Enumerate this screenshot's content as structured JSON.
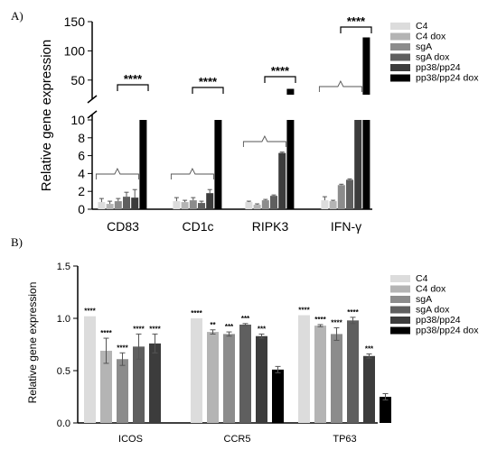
{
  "chart_data": [
    {
      "panel": "A)",
      "type": "bar",
      "ylabel": "Relative gene expression",
      "categories": [
        "CD83",
        "CD1c",
        "RIPK3",
        "IFN-γ"
      ],
      "y_axis_broken": true,
      "ylim_lower": [
        0,
        10
      ],
      "ylim_upper": [
        25,
        150
      ],
      "yticks_lower": [
        "0",
        "2",
        "4",
        "6",
        "8",
        "10"
      ],
      "yticks_upper": [
        "50",
        "100",
        "150"
      ],
      "legend_position": "right",
      "series": [
        {
          "name": "C4",
          "color": "#dcdcdc",
          "values": [
            0.8,
            0.9,
            0.8,
            1.0
          ],
          "errors": [
            0.4,
            0.4,
            0.1,
            0.4
          ]
        },
        {
          "name": "C4 dox",
          "color": "#b4b4b4",
          "values": [
            0.6,
            0.8,
            0.5,
            0.9
          ],
          "errors": [
            0.3,
            0.2,
            0.1,
            0.1
          ]
        },
        {
          "name": "sgA",
          "color": "#8c8c8c",
          "values": [
            0.9,
            1.0,
            1.0,
            2.7
          ],
          "errors": [
            0.3,
            0.3,
            0.1,
            0.1
          ]
        },
        {
          "name": "sgA dox",
          "color": "#5f5f5f",
          "values": [
            1.4,
            0.7,
            1.5,
            3.3
          ],
          "errors": [
            0.5,
            0.2,
            0.1,
            0.1
          ]
        },
        {
          "name": "pp38/pp24",
          "color": "#3c3c3c",
          "values": [
            1.3,
            1.8,
            6.3,
            22
          ],
          "errors": [
            0.9,
            0.4,
            0.1,
            0.5
          ]
        },
        {
          "name": "pp38/pp24 dox",
          "color": "#000000",
          "values": [
            20,
            13,
            35,
            123
          ],
          "errors": [
            0,
            0,
            0,
            0
          ]
        }
      ],
      "annotations": [
        {
          "category": "CD83",
          "text": "****"
        },
        {
          "category": "CD1c",
          "text": "****"
        },
        {
          "category": "RIPK3",
          "text": "****"
        },
        {
          "category": "IFN-γ",
          "text": "****"
        }
      ]
    },
    {
      "panel": "B)",
      "type": "bar",
      "ylabel": "Relative gene expression",
      "categories": [
        "ICOS",
        "CCR5",
        "TP63"
      ],
      "ylim": [
        0,
        1.5
      ],
      "yticks": [
        "0.0",
        "0.5",
        "1.0",
        "1.5"
      ],
      "legend_position": "right",
      "series": [
        {
          "name": "C4",
          "color": "#dcdcdc",
          "values": [
            1.02,
            1.0,
            1.03
          ],
          "errors": [
            0.0,
            0.0,
            0.0
          ],
          "sig": [
            "****",
            "****",
            "****"
          ]
        },
        {
          "name": "C4 dox",
          "color": "#b4b4b4",
          "values": [
            0.69,
            0.87,
            0.93
          ],
          "errors": [
            0.12,
            0.02,
            0.01
          ],
          "sig": [
            "****",
            "**",
            "****"
          ]
        },
        {
          "name": "sgA",
          "color": "#8c8c8c",
          "values": [
            0.61,
            0.85,
            0.85
          ],
          "errors": [
            0.06,
            0.02,
            0.06
          ],
          "sig": [
            "****",
            "***",
            "****"
          ]
        },
        {
          "name": "sgA dox",
          "color": "#5f5f5f",
          "values": [
            0.73,
            0.94,
            0.98
          ],
          "errors": [
            0.12,
            0.01,
            0.03
          ],
          "sig": [
            "****",
            "***",
            "****"
          ]
        },
        {
          "name": "pp38/pp24",
          "color": "#3c3c3c",
          "values": [
            0.76,
            0.83,
            0.64
          ],
          "errors": [
            0.09,
            0.02,
            0.02
          ],
          "sig": [
            "****",
            "***",
            "***"
          ]
        },
        {
          "name": "pp38/pp24 dox",
          "color": "#000000",
          "values": [
            0.0,
            0.51,
            0.25
          ],
          "errors": [
            0.0,
            0.03,
            0.03
          ],
          "sig": [
            "",
            "",
            ""
          ]
        }
      ]
    }
  ]
}
